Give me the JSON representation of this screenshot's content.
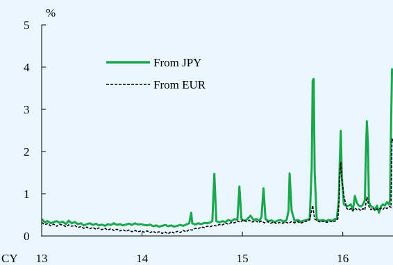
{
  "chart_data": {
    "type": "line",
    "title": "",
    "ylabel": "%",
    "x_prefix": "CY",
    "ylim": [
      0,
      5
    ],
    "xlim": [
      2013.0,
      2016.5
    ],
    "y_ticks": [
      "0",
      "1",
      "2",
      "3",
      "4",
      "5"
    ],
    "x_ticks": [
      {
        "value": 2013,
        "label": "13"
      },
      {
        "value": 2014,
        "label": "14"
      },
      {
        "value": 2015,
        "label": "15"
      },
      {
        "value": 2016,
        "label": "16"
      }
    ],
    "grid": false,
    "legend_position": "top-left",
    "series": [
      {
        "name": "From JPY",
        "color": "#1ca64c",
        "style": "solid",
        "points": [
          [
            2013.0,
            0.4
          ],
          [
            2013.03,
            0.33
          ],
          [
            2013.06,
            0.35
          ],
          [
            2013.09,
            0.3
          ],
          [
            2013.12,
            0.33
          ],
          [
            2013.15,
            0.35
          ],
          [
            2013.18,
            0.31
          ],
          [
            2013.21,
            0.34
          ],
          [
            2013.24,
            0.28
          ],
          [
            2013.27,
            0.36
          ],
          [
            2013.3,
            0.3
          ],
          [
            2013.33,
            0.33
          ],
          [
            2013.36,
            0.28
          ],
          [
            2013.39,
            0.3
          ],
          [
            2013.42,
            0.25
          ],
          [
            2013.45,
            0.28
          ],
          [
            2013.48,
            0.3
          ],
          [
            2013.51,
            0.26
          ],
          [
            2013.54,
            0.29
          ],
          [
            2013.57,
            0.25
          ],
          [
            2013.6,
            0.27
          ],
          [
            2013.63,
            0.24
          ],
          [
            2013.66,
            0.28
          ],
          [
            2013.69,
            0.26
          ],
          [
            2013.72,
            0.3
          ],
          [
            2013.75,
            0.26
          ],
          [
            2013.78,
            0.28
          ],
          [
            2013.81,
            0.25
          ],
          [
            2013.84,
            0.27
          ],
          [
            2013.87,
            0.29
          ],
          [
            2013.9,
            0.26
          ],
          [
            2013.93,
            0.3
          ],
          [
            2013.96,
            0.27
          ],
          [
            2013.99,
            0.28
          ],
          [
            2014.02,
            0.26
          ],
          [
            2014.05,
            0.25
          ],
          [
            2014.08,
            0.27
          ],
          [
            2014.11,
            0.23
          ],
          [
            2014.14,
            0.25
          ],
          [
            2014.17,
            0.22
          ],
          [
            2014.2,
            0.24
          ],
          [
            2014.23,
            0.26
          ],
          [
            2014.26,
            0.23
          ],
          [
            2014.29,
            0.25
          ],
          [
            2014.32,
            0.22
          ],
          [
            2014.35,
            0.24
          ],
          [
            2014.38,
            0.26
          ],
          [
            2014.41,
            0.24
          ],
          [
            2014.44,
            0.27
          ],
          [
            2014.47,
            0.3
          ],
          [
            2014.49,
            0.55
          ],
          [
            2014.5,
            0.3
          ],
          [
            2014.53,
            0.27
          ],
          [
            2014.56,
            0.3
          ],
          [
            2014.59,
            0.28
          ],
          [
            2014.62,
            0.31
          ],
          [
            2014.65,
            0.3
          ],
          [
            2014.68,
            0.32
          ],
          [
            2014.7,
            0.35
          ],
          [
            2014.72,
            1.47
          ],
          [
            2014.74,
            0.35
          ],
          [
            2014.77,
            0.32
          ],
          [
            2014.8,
            0.35
          ],
          [
            2014.83,
            0.33
          ],
          [
            2014.86,
            0.38
          ],
          [
            2014.89,
            0.35
          ],
          [
            2014.92,
            0.4
          ],
          [
            2014.95,
            0.38
          ],
          [
            2014.97,
            1.17
          ],
          [
            2014.99,
            0.4
          ],
          [
            2015.02,
            0.36
          ],
          [
            2015.05,
            0.4
          ],
          [
            2015.08,
            0.48
          ],
          [
            2015.11,
            0.38
          ],
          [
            2015.14,
            0.4
          ],
          [
            2015.17,
            0.36
          ],
          [
            2015.19,
            0.45
          ],
          [
            2015.21,
            1.13
          ],
          [
            2015.23,
            0.4
          ],
          [
            2015.26,
            0.35
          ],
          [
            2015.29,
            0.37
          ],
          [
            2015.32,
            0.33
          ],
          [
            2015.35,
            0.36
          ],
          [
            2015.38,
            0.38
          ],
          [
            2015.41,
            0.34
          ],
          [
            2015.44,
            0.38
          ],
          [
            2015.46,
            0.6
          ],
          [
            2015.47,
            1.48
          ],
          [
            2015.49,
            0.6
          ],
          [
            2015.52,
            0.35
          ],
          [
            2015.55,
            0.38
          ],
          [
            2015.58,
            0.34
          ],
          [
            2015.61,
            0.36
          ],
          [
            2015.64,
            0.38
          ],
          [
            2015.67,
            0.4
          ],
          [
            2015.69,
            1.6
          ],
          [
            2015.7,
            3.68
          ],
          [
            2015.71,
            3.72
          ],
          [
            2015.72,
            1.5
          ],
          [
            2015.74,
            0.4
          ],
          [
            2015.77,
            0.36
          ],
          [
            2015.8,
            0.38
          ],
          [
            2015.83,
            0.35
          ],
          [
            2015.86,
            0.38
          ],
          [
            2015.89,
            0.36
          ],
          [
            2015.92,
            0.4
          ],
          [
            2015.94,
            0.4
          ],
          [
            2015.96,
            0.85
          ],
          [
            2015.97,
            1.8
          ],
          [
            2015.98,
            2.49
          ],
          [
            2015.99,
            1.4
          ],
          [
            2016.01,
            0.75
          ],
          [
            2016.04,
            0.7
          ],
          [
            2016.06,
            0.72
          ],
          [
            2016.08,
            0.75
          ],
          [
            2016.1,
            0.6
          ],
          [
            2016.12,
            0.95
          ],
          [
            2016.14,
            0.78
          ],
          [
            2016.16,
            0.72
          ],
          [
            2016.18,
            0.7
          ],
          [
            2016.2,
            0.74
          ],
          [
            2016.22,
            0.85
          ],
          [
            2016.23,
            2.0
          ],
          [
            2016.24,
            2.72
          ],
          [
            2016.25,
            2.2
          ],
          [
            2016.26,
            0.8
          ],
          [
            2016.28,
            0.7
          ],
          [
            2016.3,
            0.68
          ],
          [
            2016.32,
            0.62
          ],
          [
            2016.34,
            0.72
          ],
          [
            2016.36,
            0.55
          ],
          [
            2016.38,
            0.7
          ],
          [
            2016.4,
            0.75
          ],
          [
            2016.42,
            0.72
          ],
          [
            2016.44,
            0.8
          ],
          [
            2016.46,
            0.75
          ],
          [
            2016.47,
            0.85
          ],
          [
            2016.48,
            2.5
          ],
          [
            2016.49,
            3.95
          ],
          [
            2016.5,
            3.9
          ]
        ]
      },
      {
        "name": "From EUR",
        "color": "#000000",
        "style": "dashed",
        "points": [
          [
            2013.0,
            0.32
          ],
          [
            2013.03,
            0.27
          ],
          [
            2013.06,
            0.29
          ],
          [
            2013.09,
            0.24
          ],
          [
            2013.12,
            0.28
          ],
          [
            2013.15,
            0.23
          ],
          [
            2013.18,
            0.27
          ],
          [
            2013.21,
            0.26
          ],
          [
            2013.24,
            0.22
          ],
          [
            2013.27,
            0.26
          ],
          [
            2013.3,
            0.23
          ],
          [
            2013.33,
            0.25
          ],
          [
            2013.36,
            0.2
          ],
          [
            2013.39,
            0.22
          ],
          [
            2013.42,
            0.18
          ],
          [
            2013.45,
            0.21
          ],
          [
            2013.48,
            0.17
          ],
          [
            2013.51,
            0.2
          ],
          [
            2013.54,
            0.16
          ],
          [
            2013.57,
            0.19
          ],
          [
            2013.6,
            0.15
          ],
          [
            2013.63,
            0.18
          ],
          [
            2013.66,
            0.14
          ],
          [
            2013.69,
            0.17
          ],
          [
            2013.72,
            0.13
          ],
          [
            2013.75,
            0.16
          ],
          [
            2013.78,
            0.12
          ],
          [
            2013.81,
            0.15
          ],
          [
            2013.84,
            0.11
          ],
          [
            2013.87,
            0.14
          ],
          [
            2013.9,
            0.1
          ],
          [
            2013.93,
            0.13
          ],
          [
            2013.96,
            0.1
          ],
          [
            2013.99,
            0.12
          ],
          [
            2014.02,
            0.09
          ],
          [
            2014.05,
            0.12
          ],
          [
            2014.08,
            0.08
          ],
          [
            2014.11,
            0.11
          ],
          [
            2014.14,
            0.07
          ],
          [
            2014.17,
            0.1
          ],
          [
            2014.2,
            0.06
          ],
          [
            2014.23,
            0.09
          ],
          [
            2014.26,
            0.05
          ],
          [
            2014.29,
            0.1
          ],
          [
            2014.32,
            0.07
          ],
          [
            2014.35,
            0.11
          ],
          [
            2014.38,
            0.08
          ],
          [
            2014.41,
            0.13
          ],
          [
            2014.44,
            0.1
          ],
          [
            2014.47,
            0.15
          ],
          [
            2014.5,
            0.14
          ],
          [
            2014.53,
            0.18
          ],
          [
            2014.56,
            0.17
          ],
          [
            2014.59,
            0.21
          ],
          [
            2014.62,
            0.2
          ],
          [
            2014.65,
            0.23
          ],
          [
            2014.68,
            0.22
          ],
          [
            2014.71,
            0.25
          ],
          [
            2014.74,
            0.24
          ],
          [
            2014.77,
            0.27
          ],
          [
            2014.8,
            0.26
          ],
          [
            2014.83,
            0.3
          ],
          [
            2014.86,
            0.28
          ],
          [
            2014.89,
            0.32
          ],
          [
            2014.92,
            0.31
          ],
          [
            2014.95,
            0.35
          ],
          [
            2014.98,
            0.33
          ],
          [
            2015.01,
            0.38
          ],
          [
            2015.04,
            0.34
          ],
          [
            2015.07,
            0.37
          ],
          [
            2015.1,
            0.33
          ],
          [
            2015.13,
            0.36
          ],
          [
            2015.16,
            0.32
          ],
          [
            2015.19,
            0.35
          ],
          [
            2015.22,
            0.31
          ],
          [
            2015.25,
            0.34
          ],
          [
            2015.28,
            0.3
          ],
          [
            2015.31,
            0.33
          ],
          [
            2015.34,
            0.29
          ],
          [
            2015.37,
            0.32
          ],
          [
            2015.4,
            0.3
          ],
          [
            2015.43,
            0.33
          ],
          [
            2015.46,
            0.3
          ],
          [
            2015.49,
            0.34
          ],
          [
            2015.52,
            0.31
          ],
          [
            2015.55,
            0.34
          ],
          [
            2015.58,
            0.3
          ],
          [
            2015.61,
            0.33
          ],
          [
            2015.64,
            0.35
          ],
          [
            2015.67,
            0.38
          ],
          [
            2015.7,
            0.72
          ],
          [
            2015.72,
            0.4
          ],
          [
            2015.75,
            0.35
          ],
          [
            2015.78,
            0.33
          ],
          [
            2015.81,
            0.35
          ],
          [
            2015.84,
            0.32
          ],
          [
            2015.87,
            0.35
          ],
          [
            2015.9,
            0.33
          ],
          [
            2015.93,
            0.36
          ],
          [
            2015.95,
            0.4
          ],
          [
            2015.96,
            0.7
          ],
          [
            2015.97,
            1.45
          ],
          [
            2015.98,
            1.75
          ],
          [
            2015.99,
            1.35
          ],
          [
            2016.01,
            0.95
          ],
          [
            2016.04,
            0.65
          ],
          [
            2016.06,
            0.62
          ],
          [
            2016.08,
            0.65
          ],
          [
            2016.1,
            0.6
          ],
          [
            2016.12,
            0.66
          ],
          [
            2016.14,
            0.62
          ],
          [
            2016.16,
            0.64
          ],
          [
            2016.18,
            0.6
          ],
          [
            2016.2,
            0.65
          ],
          [
            2016.22,
            0.62
          ],
          [
            2016.24,
            0.92
          ],
          [
            2016.26,
            0.7
          ],
          [
            2016.28,
            0.62
          ],
          [
            2016.3,
            0.66
          ],
          [
            2016.32,
            0.6
          ],
          [
            2016.34,
            0.64
          ],
          [
            2016.36,
            0.62
          ],
          [
            2016.38,
            0.66
          ],
          [
            2016.4,
            0.63
          ],
          [
            2016.42,
            0.68
          ],
          [
            2016.44,
            0.65
          ],
          [
            2016.46,
            0.7
          ],
          [
            2016.48,
            0.68
          ],
          [
            2016.49,
            2.3
          ],
          [
            2016.5,
            2.25
          ]
        ]
      }
    ]
  }
}
